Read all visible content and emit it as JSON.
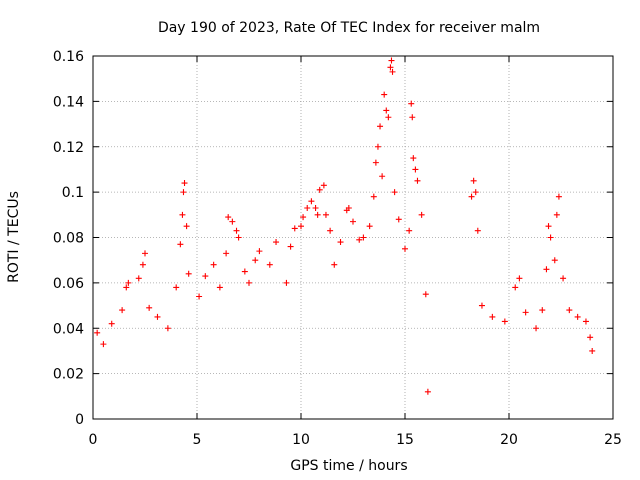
{
  "chart_data": {
    "type": "scatter",
    "title": "Day 190 of 2023, Rate Of TEC Index for receiver malm",
    "xlabel": "GPS time / hours",
    "ylabel": "ROTI / TECUs",
    "xlim": [
      0,
      25
    ],
    "ylim": [
      0,
      0.16
    ],
    "x_ticks": [
      "0",
      "5",
      "10",
      "15",
      "20",
      "25"
    ],
    "y_ticks": [
      "0",
      "0.02",
      "0.04",
      "0.06",
      "0.08",
      "0.1",
      "0.12",
      "0.14",
      "0.16"
    ],
    "x_tick_values": [
      0,
      5,
      10,
      15,
      20,
      25
    ],
    "y_tick_values": [
      0,
      0.02,
      0.04,
      0.06,
      0.08,
      0.1,
      0.12,
      0.14,
      0.16
    ],
    "grid": true,
    "marker": "+",
    "color": "#ff0000",
    "series": [
      {
        "points": [
          [
            0.2,
            0.038
          ],
          [
            0.5,
            0.033
          ],
          [
            0.9,
            0.042
          ],
          [
            1.4,
            0.048
          ],
          [
            1.6,
            0.058
          ],
          [
            1.7,
            0.06
          ],
          [
            2.2,
            0.062
          ],
          [
            2.4,
            0.068
          ],
          [
            2.5,
            0.073
          ],
          [
            2.7,
            0.049
          ],
          [
            3.1,
            0.045
          ],
          [
            3.6,
            0.04
          ],
          [
            4.0,
            0.058
          ],
          [
            4.2,
            0.077
          ],
          [
            4.3,
            0.09
          ],
          [
            4.35,
            0.1
          ],
          [
            4.4,
            0.104
          ],
          [
            4.5,
            0.085
          ],
          [
            4.6,
            0.064
          ],
          [
            5.1,
            0.054
          ],
          [
            5.4,
            0.063
          ],
          [
            5.8,
            0.068
          ],
          [
            6.1,
            0.058
          ],
          [
            6.4,
            0.073
          ],
          [
            6.5,
            0.089
          ],
          [
            6.7,
            0.087
          ],
          [
            6.9,
            0.083
          ],
          [
            7.0,
            0.08
          ],
          [
            7.3,
            0.065
          ],
          [
            7.5,
            0.06
          ],
          [
            7.8,
            0.07
          ],
          [
            8.0,
            0.074
          ],
          [
            8.5,
            0.068
          ],
          [
            8.8,
            0.078
          ],
          [
            9.3,
            0.06
          ],
          [
            9.5,
            0.076
          ],
          [
            9.7,
            0.084
          ],
          [
            10.0,
            0.085
          ],
          [
            10.1,
            0.089
          ],
          [
            10.3,
            0.093
          ],
          [
            10.5,
            0.096
          ],
          [
            10.7,
            0.093
          ],
          [
            10.8,
            0.09
          ],
          [
            10.9,
            0.101
          ],
          [
            11.1,
            0.103
          ],
          [
            11.2,
            0.09
          ],
          [
            11.4,
            0.083
          ],
          [
            11.6,
            0.068
          ],
          [
            11.9,
            0.078
          ],
          [
            12.2,
            0.092
          ],
          [
            12.3,
            0.093
          ],
          [
            12.5,
            0.087
          ],
          [
            12.8,
            0.079
          ],
          [
            13.0,
            0.08
          ],
          [
            13.3,
            0.085
          ],
          [
            13.5,
            0.098
          ],
          [
            13.6,
            0.113
          ],
          [
            13.7,
            0.12
          ],
          [
            13.8,
            0.129
          ],
          [
            13.9,
            0.107
          ],
          [
            14.0,
            0.143
          ],
          [
            14.1,
            0.136
          ],
          [
            14.2,
            0.133
          ],
          [
            14.3,
            0.155
          ],
          [
            14.35,
            0.158
          ],
          [
            14.4,
            0.153
          ],
          [
            14.5,
            0.1
          ],
          [
            14.7,
            0.088
          ],
          [
            15.0,
            0.075
          ],
          [
            15.2,
            0.083
          ],
          [
            15.3,
            0.139
          ],
          [
            15.35,
            0.133
          ],
          [
            15.4,
            0.115
          ],
          [
            15.5,
            0.11
          ],
          [
            15.6,
            0.105
          ],
          [
            15.8,
            0.09
          ],
          [
            16.0,
            0.055
          ],
          [
            16.1,
            0.012
          ],
          [
            18.2,
            0.098
          ],
          [
            18.3,
            0.105
          ],
          [
            18.4,
            0.1
          ],
          [
            18.5,
            0.083
          ],
          [
            18.7,
            0.05
          ],
          [
            19.2,
            0.045
          ],
          [
            19.8,
            0.043
          ],
          [
            20.3,
            0.058
          ],
          [
            20.5,
            0.062
          ],
          [
            20.8,
            0.047
          ],
          [
            21.3,
            0.04
          ],
          [
            21.6,
            0.048
          ],
          [
            21.8,
            0.066
          ],
          [
            21.9,
            0.085
          ],
          [
            22.0,
            0.08
          ],
          [
            22.2,
            0.07
          ],
          [
            22.3,
            0.09
          ],
          [
            22.4,
            0.098
          ],
          [
            22.6,
            0.062
          ],
          [
            22.9,
            0.048
          ],
          [
            23.3,
            0.045
          ],
          [
            23.7,
            0.043
          ],
          [
            23.9,
            0.036
          ],
          [
            24.0,
            0.03
          ]
        ]
      }
    ]
  }
}
